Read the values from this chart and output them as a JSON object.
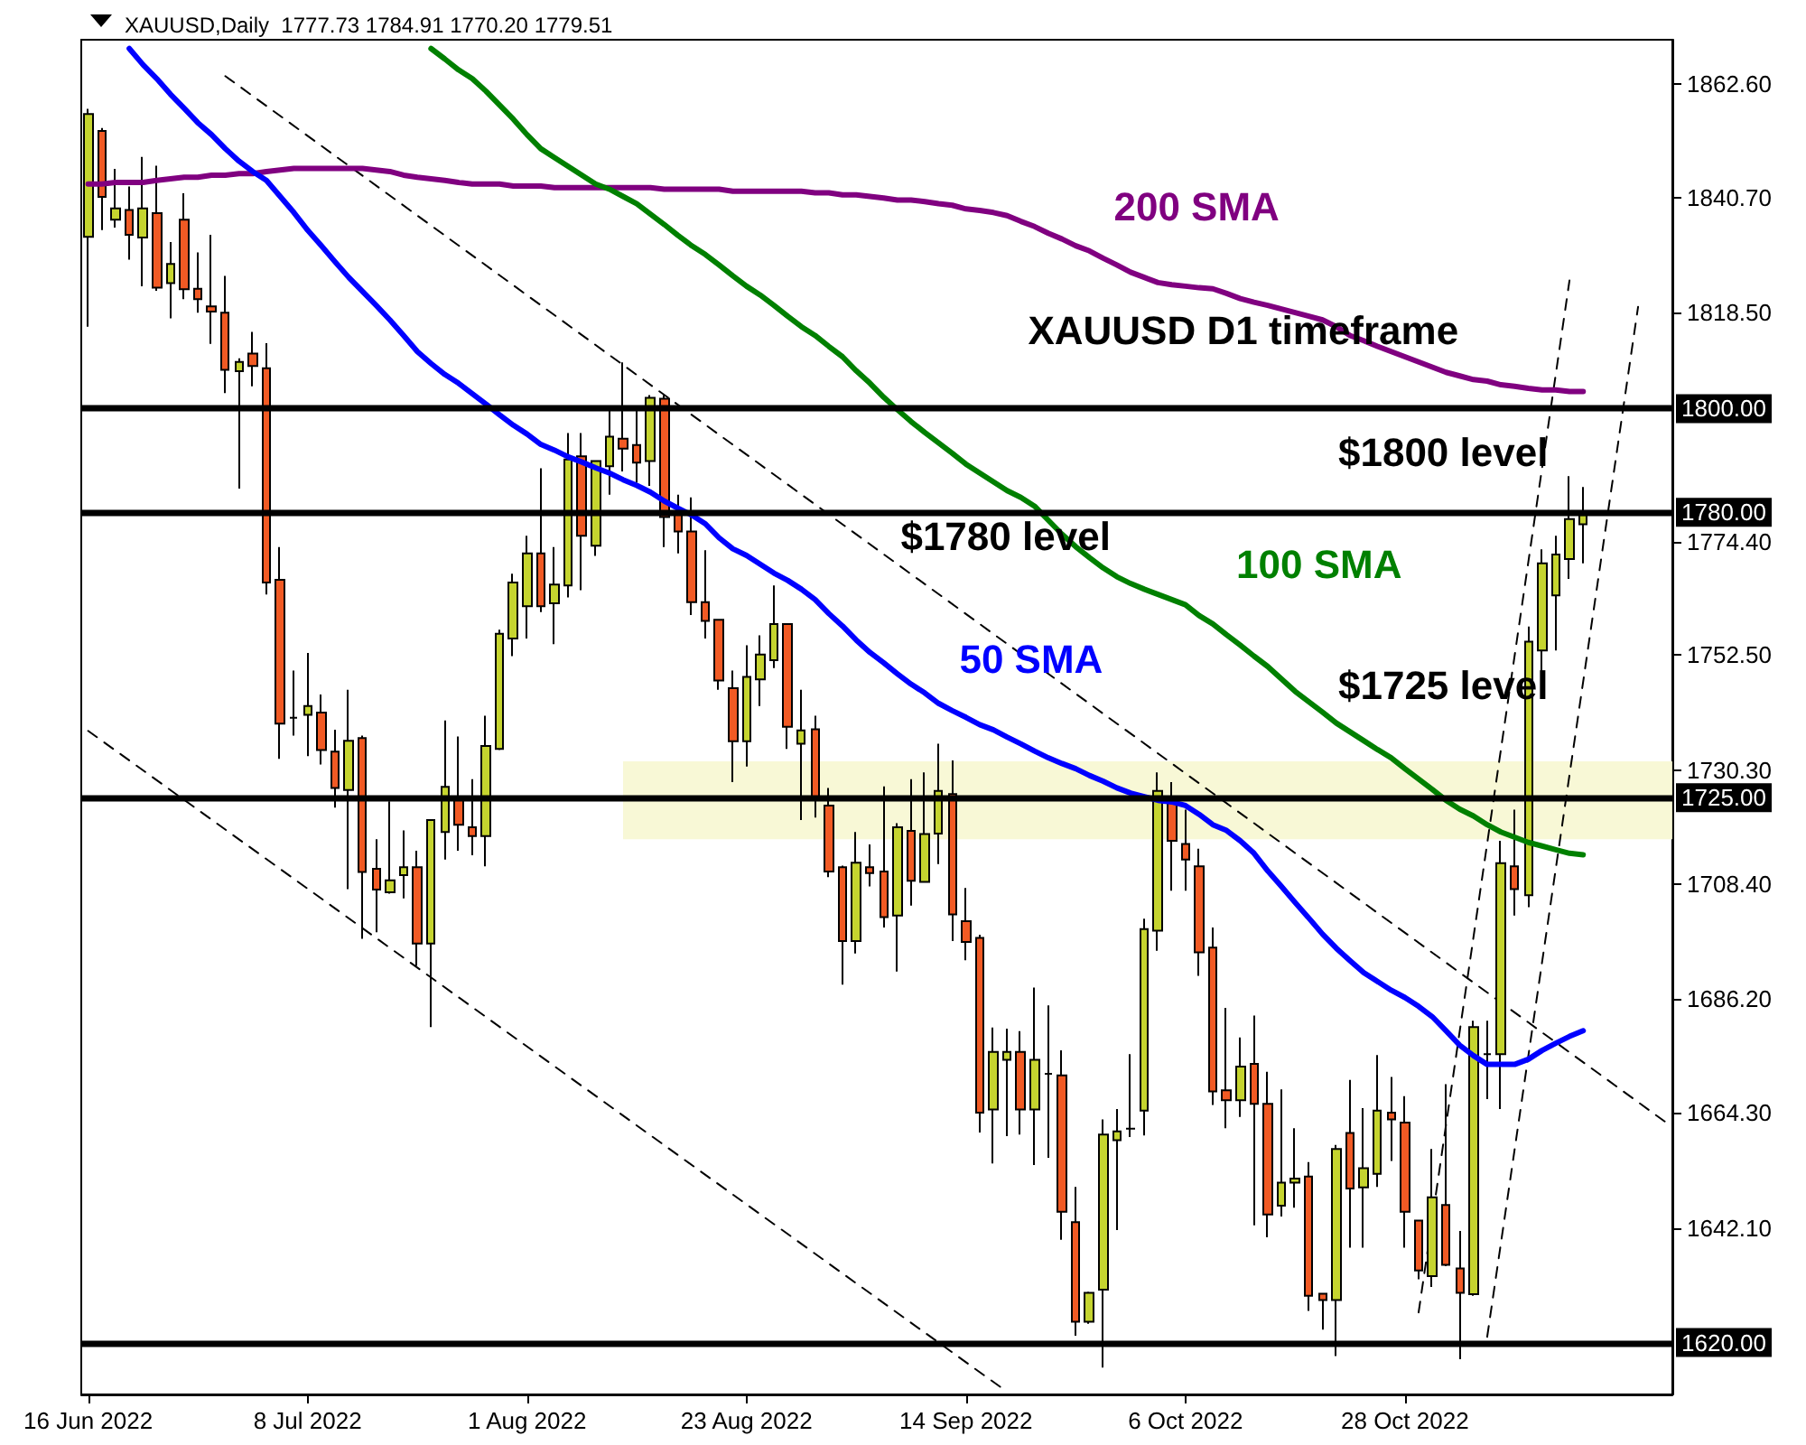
{
  "chart_data": {
    "type": "candlestick",
    "title": "XAUUSD,Daily  1777.73 1784.91 1770.20 1779.51",
    "categories": [
      "16 Jun 2022",
      null,
      null,
      null,
      null,
      null,
      null,
      null,
      null,
      null,
      null,
      null,
      null,
      null,
      null,
      null,
      "8 Jul 2022",
      null,
      null,
      null,
      null,
      null,
      null,
      null,
      null,
      null,
      null,
      null,
      null,
      null,
      null,
      null,
      "1 Aug 2022",
      null,
      null,
      null,
      null,
      null,
      null,
      null,
      null,
      null,
      null,
      null,
      null,
      null,
      null,
      null,
      "23 Aug 2022",
      null,
      null,
      null,
      null,
      null,
      null,
      null,
      null,
      null,
      null,
      null,
      null,
      null,
      null,
      null,
      "14 Sep 2022",
      null,
      null,
      null,
      null,
      null,
      null,
      null,
      null,
      null,
      null,
      null,
      null,
      null,
      null,
      null,
      "6 Oct 2022",
      null,
      null,
      null,
      null,
      null,
      null,
      null,
      null,
      null,
      null,
      null,
      null,
      null,
      null,
      null,
      "28 Oct 2022",
      null,
      null,
      null,
      null,
      null,
      null,
      null,
      null,
      null,
      null,
      null,
      null,
      null,
      null,
      null,
      null,
      null,
      null,
      null
    ],
    "series": [
      {
        "ohlc": [
          [
            1833.1,
            1857.8,
            1815.8,
            1856.8
          ],
          [
            1853.5,
            1854.1,
            1834.4,
            1840.8
          ],
          [
            1836.4,
            1846.2,
            1834.9,
            1838.6
          ],
          [
            1838.3,
            1842.8,
            1828.7,
            1833.5
          ],
          [
            1833.0,
            1848.5,
            1823.6,
            1838.6
          ],
          [
            1837.7,
            1846.8,
            1822.7,
            1823.3
          ],
          [
            1824.2,
            1832.1,
            1817.4,
            1827.9
          ],
          [
            1836.4,
            1841.5,
            1821.1,
            1823.0
          ],
          [
            1823.1,
            1830.1,
            1818.5,
            1821.1
          ],
          [
            1819.7,
            1833.5,
            1812.5,
            1818.7
          ],
          [
            1818.5,
            1825.6,
            1803.0,
            1807.5
          ],
          [
            1807.2,
            1809.7,
            1784.6,
            1809.0
          ],
          [
            1810.6,
            1814.8,
            1804.3,
            1808.2
          ],
          [
            1807.8,
            1812.6,
            1764.2,
            1766.5
          ],
          [
            1767.0,
            1773.3,
            1732.5,
            1739.3
          ],
          [
            1740.4,
            1749.5,
            1737.0,
            1740.4
          ],
          [
            1741.0,
            1752.9,
            1733.0,
            1742.7
          ],
          [
            1741.4,
            1744.9,
            1731.4,
            1734.2
          ],
          [
            1733.9,
            1738.1,
            1723.1,
            1726.9
          ],
          [
            1726.5,
            1745.8,
            1707.4,
            1736.0
          ],
          [
            1736.5,
            1737.0,
            1697.8,
            1710.7
          ],
          [
            1711.3,
            1717.0,
            1699.1,
            1707.3
          ],
          [
            1706.8,
            1724.3,
            1706.5,
            1709.1
          ],
          [
            1710.1,
            1718.7,
            1705.6,
            1711.6
          ],
          [
            1711.6,
            1714.8,
            1692.6,
            1696.9
          ],
          [
            1696.9,
            1720.7,
            1680.8,
            1720.7
          ],
          [
            1718.4,
            1739.9,
            1713.1,
            1727.1
          ],
          [
            1725.2,
            1736.8,
            1714.8,
            1719.8
          ],
          [
            1719.3,
            1728.6,
            1713.9,
            1717.6
          ],
          [
            1717.6,
            1740.8,
            1711.8,
            1735.0
          ],
          [
            1734.4,
            1757.4,
            1734.2,
            1756.6
          ],
          [
            1755.7,
            1768.2,
            1752.3,
            1766.5
          ],
          [
            1761.9,
            1775.5,
            1755.7,
            1772.1
          ],
          [
            1772.1,
            1788.5,
            1760.8,
            1761.9
          ],
          [
            1762.5,
            1773.3,
            1754.6,
            1766.1
          ],
          [
            1765.9,
            1795.3,
            1763.6,
            1790.2
          ],
          [
            1790.8,
            1795.3,
            1765.0,
            1775.5
          ],
          [
            1773.6,
            1789.9,
            1771.6,
            1789.9
          ],
          [
            1788.9,
            1800.4,
            1783.4,
            1794.6
          ],
          [
            1794.2,
            1808.9,
            1787.9,
            1792.3
          ],
          [
            1793.0,
            1799.8,
            1785.7,
            1789.6
          ],
          [
            1789.9,
            1802.6,
            1785.1,
            1802.1
          ],
          [
            1801.9,
            1802.6,
            1773.3,
            1779.1
          ],
          [
            1780.0,
            1783.4,
            1772.1,
            1776.3
          ],
          [
            1776.3,
            1782.9,
            1760.2,
            1762.7
          ],
          [
            1762.7,
            1772.7,
            1755.7,
            1759.1
          ],
          [
            1759.3,
            1759.3,
            1745.8,
            1747.6
          ],
          [
            1746.1,
            1749.5,
            1728.0,
            1735.9
          ],
          [
            1735.9,
            1754.4,
            1731.0,
            1748.3
          ],
          [
            1747.8,
            1756.3,
            1742.7,
            1752.6
          ],
          [
            1751.5,
            1765.9,
            1750.0,
            1758.5
          ],
          [
            1758.5,
            1758.5,
            1734.4,
            1738.7
          ],
          [
            1735.4,
            1745.8,
            1720.7,
            1738.0
          ],
          [
            1738.2,
            1740.8,
            1721.2,
            1724.9
          ],
          [
            1723.5,
            1726.9,
            1709.7,
            1710.8
          ],
          [
            1711.6,
            1711.9,
            1689.0,
            1697.4
          ],
          [
            1697.4,
            1718.4,
            1695.0,
            1712.5
          ],
          [
            1711.6,
            1716.0,
            1707.9,
            1710.5
          ],
          [
            1710.8,
            1727.2,
            1700.0,
            1702.0
          ],
          [
            1702.3,
            1720.1,
            1691.5,
            1719.3
          ],
          [
            1718.6,
            1728.6,
            1704.2,
            1709.0
          ],
          [
            1708.8,
            1729.9,
            1708.8,
            1718.0
          ],
          [
            1718.1,
            1735.4,
            1712.2,
            1726.3
          ],
          [
            1725.7,
            1732.2,
            1697.4,
            1702.5
          ],
          [
            1701.2,
            1707.6,
            1693.7,
            1697.2
          ],
          [
            1698.0,
            1698.6,
            1660.5,
            1664.3
          ],
          [
            1664.9,
            1680.7,
            1654.5,
            1676.0
          ],
          [
            1674.5,
            1680.5,
            1659.8,
            1676.0
          ],
          [
            1676.0,
            1680.0,
            1660.1,
            1664.9
          ],
          [
            1664.9,
            1688.4,
            1654.2,
            1674.5
          ],
          [
            1671.8,
            1685.0,
            1655.6,
            1671.8
          ],
          [
            1671.5,
            1676.3,
            1639.8,
            1645.2
          ],
          [
            1643.2,
            1650.0,
            1621.3,
            1624.0
          ],
          [
            1624.0,
            1629.8,
            1623.6,
            1629.6
          ],
          [
            1630.2,
            1663.0,
            1615.2,
            1660.1
          ],
          [
            1659.0,
            1665.0,
            1641.7,
            1660.7
          ],
          [
            1661.2,
            1675.6,
            1659.6,
            1661.2
          ],
          [
            1664.7,
            1701.7,
            1659.9,
            1699.7
          ],
          [
            1699.4,
            1729.9,
            1695.5,
            1726.3
          ],
          [
            1724.6,
            1728.0,
            1707.1,
            1716.7
          ],
          [
            1716.1,
            1722.7,
            1707.1,
            1713.1
          ],
          [
            1711.8,
            1715.2,
            1690.7,
            1695.2
          ],
          [
            1696.1,
            1700.0,
            1665.8,
            1668.4
          ],
          [
            1668.6,
            1684.5,
            1661.3,
            1666.7
          ],
          [
            1666.7,
            1678.8,
            1663.5,
            1673.2
          ],
          [
            1673.7,
            1683.0,
            1642.6,
            1666.0
          ],
          [
            1666.0,
            1672.2,
            1640.3,
            1644.7
          ],
          [
            1646.4,
            1668.8,
            1644.3,
            1650.8
          ],
          [
            1650.8,
            1661.3,
            1646.0,
            1651.6
          ],
          [
            1652.0,
            1654.8,
            1626.1,
            1629.0
          ],
          [
            1629.4,
            1629.4,
            1622.5,
            1628.2
          ],
          [
            1628.2,
            1658.1,
            1617.4,
            1657.3
          ],
          [
            1660.4,
            1670.6,
            1638.3,
            1649.7
          ],
          [
            1649.9,
            1665.2,
            1638.3,
            1653.6
          ],
          [
            1652.5,
            1675.4,
            1650.0,
            1664.7
          ],
          [
            1664.3,
            1671.2,
            1655.0,
            1663.0
          ],
          [
            1662.4,
            1667.5,
            1638.3,
            1645.2
          ],
          [
            1643.5,
            1643.5,
            1632.2,
            1633.9
          ],
          [
            1632.8,
            1657.3,
            1630.7,
            1648.0
          ],
          [
            1646.5,
            1669.8,
            1634.7,
            1635.0
          ],
          [
            1634.3,
            1641.5,
            1616.8,
            1629.6
          ],
          [
            1629.3,
            1682.0,
            1629.0,
            1680.8
          ],
          [
            1675.6,
            1682.0,
            1666.9,
            1675.6
          ],
          [
            1675.6,
            1716.7,
            1665.0,
            1712.4
          ],
          [
            1711.8,
            1722.7,
            1702.3,
            1707.4
          ],
          [
            1706.2,
            1758.0,
            1703.9,
            1755.1
          ],
          [
            1753.4,
            1772.9,
            1747.2,
            1770.2
          ],
          [
            1764.0,
            1775.5,
            1753.4,
            1771.9
          ],
          [
            1771.0,
            1787.0,
            1767.2,
            1778.7
          ],
          [
            1777.73,
            1784.91,
            1770.2,
            1779.51
          ],
          null,
          null,
          null,
          null,
          null,
          null
        ],
        "colors": [
          "#c5d42f",
          "#f15a24",
          "#c5d42f",
          "#f15a24",
          "#c5d42f",
          "#f15a24",
          "#c5d42f",
          "#f15a24",
          "#f15a24",
          "#f15a24",
          "#f15a24",
          "#c5d42f",
          "#f15a24",
          "#f15a24",
          "#f15a24",
          "#000000",
          "#c5d42f",
          "#f15a24",
          "#f15a24",
          "#c5d42f",
          "#f15a24",
          "#f15a24",
          "#c5d42f",
          "#c5d42f",
          "#f15a24",
          "#c5d42f",
          "#c5d42f",
          "#f15a24",
          "#f15a24",
          "#c5d42f",
          "#c5d42f",
          "#c5d42f",
          "#c5d42f",
          "#f15a24",
          "#c5d42f",
          "#c5d42f",
          "#f15a24",
          "#c5d42f",
          "#c5d42f",
          "#f15a24",
          "#f15a24",
          "#c5d42f",
          "#f15a24",
          "#f15a24",
          "#f15a24",
          "#f15a24",
          "#f15a24",
          "#f15a24",
          "#c5d42f",
          "#c5d42f",
          "#c5d42f",
          "#f15a24",
          "#c5d42f",
          "#f15a24",
          "#f15a24",
          "#f15a24",
          "#c5d42f",
          "#f15a24",
          "#f15a24",
          "#c5d42f",
          "#f15a24",
          "#c5d42f",
          "#c5d42f",
          "#f15a24",
          "#f15a24",
          "#f15a24",
          "#c5d42f",
          "#c5d42f",
          "#f15a24",
          "#c5d42f",
          "#000000",
          "#f15a24",
          "#f15a24",
          "#c5d42f",
          "#c5d42f",
          "#c5d42f",
          "#000000",
          "#c5d42f",
          "#c5d42f",
          "#f15a24",
          "#f15a24",
          "#f15a24",
          "#f15a24",
          "#f15a24",
          "#c5d42f",
          "#f15a24",
          "#f15a24",
          "#c5d42f",
          "#c5d42f",
          "#f15a24",
          "#f15a24",
          "#c5d42f",
          "#f15a24",
          "#c5d42f",
          "#c5d42f",
          "#f15a24",
          "#f15a24",
          "#f15a24",
          "#c5d42f",
          "#f15a24",
          "#f15a24",
          "#c5d42f",
          "#000000",
          "#c5d42f",
          "#f15a24",
          "#c5d42f",
          "#c5d42f",
          "#c5d42f",
          "#c5d42f",
          "#c5d42f",
          null,
          null,
          null,
          null,
          null,
          null
        ]
      },
      {
        "type": "line",
        "name": "200 SMA",
        "color": "#800080",
        "values": [
          1843.3,
          1843.3,
          1843.6,
          1843.6,
          1843.6,
          1844.0,
          1844.3,
          1844.6,
          1844.6,
          1845.0,
          1845.0,
          1845.3,
          1845.3,
          1845.7,
          1846.0,
          1846.3,
          1846.3,
          1846.3,
          1846.3,
          1846.3,
          1846.3,
          1846.0,
          1845.7,
          1845.0,
          1844.6,
          1844.3,
          1844.0,
          1843.6,
          1843.3,
          1843.3,
          1843.3,
          1842.9,
          1842.9,
          1842.9,
          1842.6,
          1842.6,
          1842.6,
          1842.6,
          1842.6,
          1842.6,
          1842.6,
          1842.6,
          1842.3,
          1842.3,
          1842.3,
          1842.3,
          1842.3,
          1841.9,
          1841.9,
          1841.9,
          1841.9,
          1841.9,
          1841.9,
          1841.6,
          1841.6,
          1841.2,
          1841.2,
          1840.9,
          1840.6,
          1840.2,
          1840.2,
          1839.9,
          1839.5,
          1839.2,
          1838.5,
          1838.2,
          1837.8,
          1837.2,
          1836.1,
          1835.1,
          1833.8,
          1832.7,
          1831.4,
          1830.4,
          1829.0,
          1827.7,
          1826.3,
          1825.3,
          1824.3,
          1823.9,
          1823.6,
          1823.3,
          1823.1,
          1822.2,
          1821.2,
          1820.5,
          1819.9,
          1819.2,
          1818.5,
          1817.8,
          1817.1,
          1815.8,
          1814.1,
          1813.1,
          1812.0,
          1811.0,
          1810.0,
          1809.0,
          1808.0,
          1807.0,
          1806.3,
          1805.6,
          1805.3,
          1804.6,
          1804.3,
          1803.9,
          1803.6,
          1803.6,
          1803.3,
          1803.3,
          null,
          null,
          null,
          null,
          null,
          null
        ]
      },
      {
        "type": "line",
        "name": "100 SMA",
        "color": "#008000",
        "values": [
          null,
          null,
          null,
          null,
          null,
          null,
          null,
          null,
          null,
          null,
          null,
          null,
          null,
          null,
          null,
          null,
          null,
          null,
          null,
          null,
          null,
          null,
          null,
          null,
          null,
          1869.4,
          1867.4,
          1865.3,
          1863.6,
          1861.2,
          1858.5,
          1855.8,
          1852.8,
          1850.1,
          1848.4,
          1846.7,
          1845.0,
          1843.3,
          1842.3,
          1840.9,
          1839.5,
          1837.5,
          1835.5,
          1833.4,
          1831.4,
          1829.7,
          1827.7,
          1825.6,
          1823.6,
          1821.9,
          1819.9,
          1817.8,
          1815.8,
          1814.1,
          1812.0,
          1810.0,
          1807.3,
          1804.9,
          1802.2,
          1799.8,
          1797.5,
          1795.4,
          1793.4,
          1791.4,
          1789.3,
          1787.6,
          1785.9,
          1784.2,
          1782.9,
          1781.2,
          1778.5,
          1775.8,
          1773.4,
          1771.3,
          1769.3,
          1767.6,
          1766.3,
          1765.2,
          1764.2,
          1763.2,
          1762.2,
          1760.1,
          1758.5,
          1756.4,
          1754.4,
          1752.3,
          1750.3,
          1747.9,
          1745.5,
          1743.5,
          1741.5,
          1739.4,
          1737.7,
          1736.0,
          1734.3,
          1732.7,
          1730.6,
          1728.6,
          1726.6,
          1724.5,
          1722.8,
          1721.5,
          1719.8,
          1718.4,
          1717.4,
          1716.4,
          1715.7,
          1715.0,
          1714.3,
          1714.0,
          null,
          null,
          null,
          null,
          null,
          null
        ]
      },
      {
        "type": "line",
        "name": "50 SMA",
        "color": "#0000ff",
        "values": [
          null,
          null,
          null,
          1869.4,
          1866.3,
          1863.6,
          1860.6,
          1857.9,
          1855.1,
          1852.8,
          1850.1,
          1847.7,
          1845.7,
          1844.0,
          1840.9,
          1837.8,
          1834.4,
          1831.4,
          1828.3,
          1825.3,
          1822.6,
          1819.9,
          1817.1,
          1814.1,
          1811.0,
          1808.7,
          1806.6,
          1804.9,
          1802.9,
          1800.9,
          1798.8,
          1796.8,
          1795.1,
          1793.1,
          1792.0,
          1790.7,
          1789.7,
          1788.6,
          1787.6,
          1786.3,
          1785.2,
          1783.9,
          1782.2,
          1780.8,
          1779.5,
          1777.8,
          1775.1,
          1773.0,
          1771.7,
          1770.0,
          1768.3,
          1766.9,
          1765.2,
          1763.2,
          1760.5,
          1758.1,
          1755.4,
          1753.0,
          1751.0,
          1748.9,
          1746.9,
          1745.2,
          1743.2,
          1741.8,
          1740.5,
          1739.1,
          1738.1,
          1736.7,
          1735.4,
          1734.0,
          1732.7,
          1731.6,
          1730.6,
          1729.3,
          1728.2,
          1726.9,
          1725.9,
          1725.2,
          1724.5,
          1724.2,
          1723.5,
          1721.8,
          1719.8,
          1718.7,
          1716.7,
          1714.3,
          1710.9,
          1707.9,
          1704.8,
          1701.8,
          1698.7,
          1696.0,
          1693.6,
          1691.3,
          1689.6,
          1687.9,
          1686.5,
          1684.8,
          1682.8,
          1680.1,
          1677.3,
          1675.3,
          1673.6,
          1673.6,
          1673.6,
          1674.6,
          1676.3,
          1677.7,
          1679.0,
          1680.1,
          null,
          null,
          null,
          null,
          null,
          null
        ]
      },
      {
        "type": "line",
        "color": "#000000",
        "line_style": "dashed",
        "values": [
          null,
          null,
          null,
          null,
          null,
          null,
          null,
          null,
          null,
          null,
          1864.1,
          null,
          null,
          null,
          null,
          null,
          null,
          null,
          null,
          null,
          null,
          null,
          null,
          null,
          null,
          null,
          null,
          null,
          null,
          null,
          null,
          null,
          null,
          null,
          null,
          null,
          null,
          null,
          null,
          null,
          null,
          null,
          null,
          null,
          null,
          null,
          null,
          null,
          null,
          null,
          null,
          null,
          null,
          null,
          null,
          null,
          null,
          null,
          null,
          null,
          null,
          null,
          null,
          null,
          null,
          null,
          null,
          null,
          null,
          null,
          null,
          null,
          null,
          null,
          null,
          null,
          null,
          null,
          null,
          null,
          null,
          null,
          null,
          null,
          null,
          null,
          null,
          null,
          null,
          null,
          null,
          null,
          null,
          null,
          null,
          null,
          null,
          null,
          null,
          null,
          null,
          null,
          null,
          null,
          null,
          null,
          null,
          null,
          null,
          null,
          null,
          null,
          null,
          null,
          null,
          1662.5
        ]
      },
      {
        "type": "line",
        "color": "#000000",
        "line_style": "dashed",
        "values": [
          1737.9,
          null,
          null,
          null,
          null,
          null,
          null,
          null,
          null,
          null,
          null,
          null,
          null,
          null,
          null,
          null,
          null,
          null,
          null,
          null,
          null,
          null,
          null,
          null,
          null,
          null,
          null,
          null,
          null,
          null,
          null,
          null,
          null,
          null,
          null,
          null,
          null,
          null,
          null,
          null,
          null,
          null,
          null,
          null,
          null,
          null,
          null,
          null,
          null,
          null,
          null,
          null,
          null,
          null,
          null,
          null,
          null,
          null,
          null,
          null,
          null,
          null,
          null,
          null,
          null,
          null,
          null,
          1610.5,
          null,
          null,
          null,
          null,
          null,
          null,
          null,
          null,
          null,
          null,
          null,
          null,
          null,
          null,
          null,
          null,
          null,
          null,
          null,
          null,
          null,
          null,
          null,
          null,
          null,
          null,
          null,
          null,
          null,
          null,
          null,
          null,
          null,
          null,
          null,
          null,
          null,
          null,
          null,
          null,
          null,
          null,
          null,
          null,
          null,
          null,
          null,
          null
        ]
      },
      {
        "type": "line",
        "color": "#000000",
        "line_style": "dashed",
        "values": [
          null,
          null,
          null,
          null,
          null,
          null,
          null,
          null,
          null,
          null,
          null,
          null,
          null,
          null,
          null,
          null,
          null,
          null,
          null,
          null,
          null,
          null,
          null,
          null,
          null,
          null,
          null,
          null,
          null,
          null,
          null,
          null,
          null,
          null,
          null,
          null,
          null,
          null,
          null,
          null,
          null,
          null,
          null,
          null,
          null,
          null,
          null,
          null,
          null,
          null,
          null,
          null,
          null,
          null,
          null,
          null,
          null,
          null,
          null,
          null,
          null,
          null,
          null,
          null,
          null,
          null,
          null,
          null,
          null,
          null,
          null,
          null,
          null,
          null,
          null,
          null,
          null,
          null,
          null,
          null,
          null,
          null,
          null,
          null,
          null,
          null,
          null,
          null,
          null,
          null,
          null,
          null,
          null,
          null,
          null,
          null,
          null,
          1625.8,
          null,
          null,
          null,
          null,
          null,
          null,
          null,
          null,
          null,
          null,
          1824.7,
          null,
          null,
          null,
          null,
          null,
          null,
          null
        ]
      },
      {
        "type": "line",
        "color": "#000000",
        "line_style": "dashed",
        "values": [
          null,
          null,
          null,
          null,
          null,
          null,
          null,
          null,
          null,
          null,
          null,
          null,
          null,
          null,
          null,
          null,
          null,
          null,
          null,
          null,
          null,
          null,
          null,
          null,
          null,
          null,
          null,
          null,
          null,
          null,
          null,
          null,
          null,
          null,
          null,
          null,
          null,
          null,
          null,
          null,
          null,
          null,
          null,
          null,
          null,
          null,
          null,
          null,
          null,
          null,
          null,
          null,
          null,
          null,
          null,
          null,
          null,
          null,
          null,
          null,
          null,
          null,
          null,
          null,
          null,
          null,
          null,
          null,
          null,
          null,
          null,
          null,
          null,
          null,
          null,
          null,
          null,
          null,
          null,
          null,
          null,
          null,
          null,
          null,
          null,
          null,
          null,
          null,
          null,
          null,
          null,
          null,
          null,
          null,
          null,
          null,
          null,
          null,
          null,
          null,
          null,
          null,
          1621.1,
          null,
          null,
          null,
          null,
          null,
          null,
          null,
          null,
          null,
          null,
          1819.6,
          null,
          null
        ]
      }
    ],
    "ylim": [
      1610,
      1871.1
    ],
    "yticks": [
      {
        "value": 1862.6,
        "label": "1862.60"
      },
      {
        "value": 1840.7,
        "label": "1840.70"
      },
      {
        "value": 1818.5,
        "label": "1818.50"
      },
      {
        "value": 1774.4,
        "label": "1774.40"
      },
      {
        "value": 1752.5,
        "label": "1752.50"
      },
      {
        "value": 1730.3,
        "label": "1730.30"
      },
      {
        "value": 1708.4,
        "label": "1708.40"
      },
      {
        "value": 1686.2,
        "label": "1686.20"
      },
      {
        "value": 1664.3,
        "label": "1664.30"
      },
      {
        "value": 1642.1,
        "label": "1642.10"
      }
    ],
    "ref_lines": [
      {
        "axis": "y",
        "value": 1800,
        "label": "1800.00",
        "color": "#000000"
      },
      {
        "axis": "y",
        "value": 1780,
        "label": "1780.00",
        "color": "#000000"
      },
      {
        "axis": "y",
        "value": 1725,
        "label": "1725.00",
        "color": "#000000"
      },
      {
        "axis": "y",
        "value": 1620,
        "label": "1620.00",
        "color": "#000000"
      }
    ],
    "bands": [
      {
        "axis": "y",
        "from": 1717,
        "to": 1732,
        "color": "#f7f7d2"
      }
    ],
    "annotations": [
      "XAUUSD D1 timeframe",
      "$1800 level",
      "$1780 level",
      "$1725 level"
    ],
    "grid": false,
    "legend": false,
    "marker": "none"
  }
}
